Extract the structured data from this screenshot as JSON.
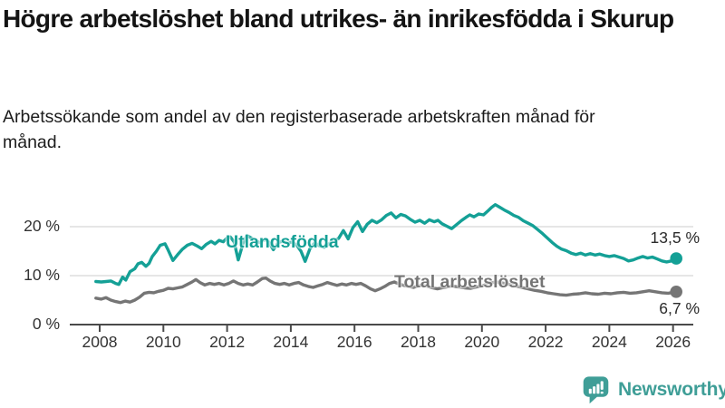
{
  "chart_data": {
    "type": "line",
    "title": "Högre arbetslöshet bland utrikes- än inrikesfödda i Skurup",
    "subtitle": "Arbetssökande som andel av den registerbaserade arbetskraften månad för månad.",
    "x_unit": "year",
    "xlim": [
      2007.05,
      2026.65
    ],
    "ylim": [
      0,
      25
    ],
    "grid": "horizontal-only",
    "legend_position": "inline-labels",
    "x_ticks": [
      2008,
      2010,
      2012,
      2014,
      2016,
      2018,
      2020,
      2022,
      2024,
      2026
    ],
    "x_tick_labels": [
      "2008",
      "2010",
      "2012",
      "2014",
      "2016",
      "2018",
      "2020",
      "2022",
      "2024",
      "2026"
    ],
    "y_ticks": [
      0,
      10,
      20
    ],
    "y_tick_labels": [
      "0 %",
      "10 %",
      "20 %"
    ],
    "series": [
      {
        "name": "Utlandsfödda",
        "color": "#14a096",
        "end_label": "13,5 %",
        "last_value": 13.5,
        "points": [
          [
            2007.88,
            8.8
          ],
          [
            2008.05,
            8.7
          ],
          [
            2008.2,
            8.8
          ],
          [
            2008.35,
            8.9
          ],
          [
            2008.5,
            8.4
          ],
          [
            2008.6,
            8.2
          ],
          [
            2008.72,
            9.7
          ],
          [
            2008.82,
            9.1
          ],
          [
            2008.95,
            10.8
          ],
          [
            2009.1,
            11.4
          ],
          [
            2009.2,
            12.4
          ],
          [
            2009.32,
            12.7
          ],
          [
            2009.45,
            11.9
          ],
          [
            2009.55,
            12.5
          ],
          [
            2009.65,
            13.9
          ],
          [
            2009.78,
            15.0
          ],
          [
            2009.9,
            16.2
          ],
          [
            2010.05,
            16.5
          ],
          [
            2010.15,
            15.2
          ],
          [
            2010.3,
            13.1
          ],
          [
            2010.45,
            14.3
          ],
          [
            2010.6,
            15.4
          ],
          [
            2010.75,
            16.2
          ],
          [
            2010.9,
            16.6
          ],
          [
            2011.05,
            16.1
          ],
          [
            2011.2,
            15.5
          ],
          [
            2011.35,
            16.4
          ],
          [
            2011.5,
            17.0
          ],
          [
            2011.62,
            16.5
          ],
          [
            2011.75,
            17.2
          ],
          [
            2011.88,
            16.9
          ],
          [
            2011.98,
            17.6
          ],
          [
            2012.1,
            17.9
          ],
          [
            2012.22,
            16.9
          ],
          [
            2012.35,
            13.2
          ],
          [
            2012.5,
            16.6
          ],
          [
            2012.62,
            18.2
          ],
          [
            2012.75,
            17.7
          ],
          [
            2012.9,
            17.1
          ],
          [
            2013.05,
            16.7
          ],
          [
            2013.18,
            17.4
          ],
          [
            2013.3,
            16.9
          ],
          [
            2013.45,
            15.3
          ],
          [
            2013.6,
            16.7
          ],
          [
            2013.75,
            17.1
          ],
          [
            2013.9,
            16.6
          ],
          [
            2014.05,
            16.9
          ],
          [
            2014.2,
            16.1
          ],
          [
            2014.32,
            15.0
          ],
          [
            2014.45,
            12.9
          ],
          [
            2014.6,
            15.5
          ],
          [
            2014.75,
            16.7
          ],
          [
            2014.9,
            16.1
          ],
          [
            2015.05,
            15.8
          ],
          [
            2015.2,
            16.5
          ],
          [
            2015.35,
            17.1
          ],
          [
            2015.5,
            17.6
          ],
          [
            2015.65,
            19.2
          ],
          [
            2015.8,
            17.5
          ],
          [
            2015.95,
            19.8
          ],
          [
            2016.1,
            21.0
          ],
          [
            2016.25,
            19.0
          ],
          [
            2016.4,
            20.5
          ],
          [
            2016.55,
            21.3
          ],
          [
            2016.7,
            20.8
          ],
          [
            2016.85,
            21.4
          ],
          [
            2017.0,
            22.3
          ],
          [
            2017.15,
            22.8
          ],
          [
            2017.3,
            21.8
          ],
          [
            2017.45,
            22.5
          ],
          [
            2017.6,
            22.2
          ],
          [
            2017.75,
            21.5
          ],
          [
            2017.9,
            20.9
          ],
          [
            2018.05,
            21.3
          ],
          [
            2018.2,
            20.7
          ],
          [
            2018.35,
            21.4
          ],
          [
            2018.5,
            21.0
          ],
          [
            2018.62,
            21.3
          ],
          [
            2018.75,
            20.6
          ],
          [
            2018.9,
            20.1
          ],
          [
            2019.05,
            19.6
          ],
          [
            2019.2,
            20.4
          ],
          [
            2019.35,
            21.2
          ],
          [
            2019.5,
            21.9
          ],
          [
            2019.62,
            22.4
          ],
          [
            2019.75,
            22.0
          ],
          [
            2019.9,
            22.6
          ],
          [
            2020.05,
            22.4
          ],
          [
            2020.2,
            23.3
          ],
          [
            2020.3,
            23.9
          ],
          [
            2020.42,
            24.5
          ],
          [
            2020.55,
            24.0
          ],
          [
            2020.7,
            23.4
          ],
          [
            2020.85,
            22.9
          ],
          [
            2021.0,
            22.3
          ],
          [
            2021.15,
            21.9
          ],
          [
            2021.3,
            21.2
          ],
          [
            2021.45,
            20.7
          ],
          [
            2021.6,
            20.2
          ],
          [
            2021.75,
            19.4
          ],
          [
            2021.9,
            18.6
          ],
          [
            2022.05,
            17.7
          ],
          [
            2022.2,
            16.8
          ],
          [
            2022.35,
            16.0
          ],
          [
            2022.5,
            15.4
          ],
          [
            2022.65,
            15.1
          ],
          [
            2022.8,
            14.6
          ],
          [
            2022.95,
            14.3
          ],
          [
            2023.1,
            14.6
          ],
          [
            2023.25,
            14.2
          ],
          [
            2023.4,
            14.5
          ],
          [
            2023.55,
            14.2
          ],
          [
            2023.7,
            14.4
          ],
          [
            2023.85,
            14.1
          ],
          [
            2024.0,
            13.9
          ],
          [
            2024.15,
            14.1
          ],
          [
            2024.3,
            13.8
          ],
          [
            2024.45,
            13.5
          ],
          [
            2024.6,
            13.0
          ],
          [
            2024.75,
            13.2
          ],
          [
            2024.9,
            13.6
          ],
          [
            2025.05,
            13.9
          ],
          [
            2025.2,
            13.6
          ],
          [
            2025.35,
            13.8
          ],
          [
            2025.5,
            13.4
          ],
          [
            2025.65,
            13.0
          ],
          [
            2025.8,
            12.8
          ],
          [
            2025.95,
            13.0
          ],
          [
            2026.1,
            13.5
          ]
        ]
      },
      {
        "name": "Total arbetslöshet",
        "color": "#757575",
        "end_label": "6,7 %",
        "last_value": 6.7,
        "points": [
          [
            2007.88,
            5.4
          ],
          [
            2008.05,
            5.2
          ],
          [
            2008.2,
            5.5
          ],
          [
            2008.35,
            5.0
          ],
          [
            2008.5,
            4.7
          ],
          [
            2008.65,
            4.5
          ],
          [
            2008.8,
            4.8
          ],
          [
            2008.95,
            4.6
          ],
          [
            2009.1,
            5.0
          ],
          [
            2009.25,
            5.6
          ],
          [
            2009.4,
            6.4
          ],
          [
            2009.55,
            6.6
          ],
          [
            2009.7,
            6.5
          ],
          [
            2009.85,
            6.8
          ],
          [
            2010.0,
            7.0
          ],
          [
            2010.15,
            7.4
          ],
          [
            2010.3,
            7.3
          ],
          [
            2010.45,
            7.5
          ],
          [
            2010.6,
            7.7
          ],
          [
            2010.75,
            8.2
          ],
          [
            2010.9,
            8.7
          ],
          [
            2011.02,
            9.2
          ],
          [
            2011.15,
            8.6
          ],
          [
            2011.3,
            8.1
          ],
          [
            2011.45,
            8.4
          ],
          [
            2011.6,
            8.2
          ],
          [
            2011.75,
            8.4
          ],
          [
            2011.9,
            8.1
          ],
          [
            2012.05,
            8.4
          ],
          [
            2012.2,
            8.9
          ],
          [
            2012.35,
            8.4
          ],
          [
            2012.5,
            8.1
          ],
          [
            2012.65,
            8.3
          ],
          [
            2012.8,
            8.1
          ],
          [
            2012.95,
            8.7
          ],
          [
            2013.1,
            9.4
          ],
          [
            2013.22,
            9.5
          ],
          [
            2013.35,
            8.9
          ],
          [
            2013.5,
            8.4
          ],
          [
            2013.65,
            8.2
          ],
          [
            2013.8,
            8.4
          ],
          [
            2013.95,
            8.1
          ],
          [
            2014.1,
            8.4
          ],
          [
            2014.25,
            8.6
          ],
          [
            2014.4,
            8.1
          ],
          [
            2014.55,
            7.8
          ],
          [
            2014.7,
            7.6
          ],
          [
            2014.85,
            7.9
          ],
          [
            2015.0,
            8.2
          ],
          [
            2015.15,
            8.6
          ],
          [
            2015.3,
            8.3
          ],
          [
            2015.45,
            8.0
          ],
          [
            2015.6,
            8.3
          ],
          [
            2015.75,
            8.1
          ],
          [
            2015.9,
            8.4
          ],
          [
            2016.05,
            8.2
          ],
          [
            2016.2,
            8.4
          ],
          [
            2016.35,
            7.9
          ],
          [
            2016.5,
            7.3
          ],
          [
            2016.65,
            6.9
          ],
          [
            2016.8,
            7.3
          ],
          [
            2016.95,
            7.8
          ],
          [
            2017.1,
            8.4
          ],
          [
            2017.25,
            8.7
          ],
          [
            2017.4,
            8.3
          ],
          [
            2017.55,
            8.0
          ],
          [
            2017.7,
            7.8
          ],
          [
            2017.85,
            7.6
          ],
          [
            2018.0,
            7.9
          ],
          [
            2018.15,
            8.1
          ],
          [
            2018.3,
            7.8
          ],
          [
            2018.45,
            7.5
          ],
          [
            2018.6,
            7.3
          ],
          [
            2018.75,
            7.5
          ],
          [
            2018.9,
            7.7
          ],
          [
            2019.05,
            7.9
          ],
          [
            2019.25,
            7.7
          ],
          [
            2019.45,
            7.5
          ],
          [
            2019.65,
            7.4
          ],
          [
            2019.85,
            7.7
          ],
          [
            2020.05,
            8.0
          ],
          [
            2020.25,
            8.5
          ],
          [
            2020.45,
            8.7
          ],
          [
            2020.65,
            8.5
          ],
          [
            2020.85,
            8.2
          ],
          [
            2021.05,
            7.9
          ],
          [
            2021.25,
            7.6
          ],
          [
            2021.45,
            7.3
          ],
          [
            2021.65,
            7.0
          ],
          [
            2021.85,
            6.8
          ],
          [
            2022.05,
            6.5
          ],
          [
            2022.25,
            6.3
          ],
          [
            2022.45,
            6.1
          ],
          [
            2022.65,
            6.0
          ],
          [
            2022.85,
            6.2
          ],
          [
            2023.05,
            6.3
          ],
          [
            2023.25,
            6.5
          ],
          [
            2023.45,
            6.3
          ],
          [
            2023.65,
            6.2
          ],
          [
            2023.85,
            6.4
          ],
          [
            2024.05,
            6.3
          ],
          [
            2024.25,
            6.5
          ],
          [
            2024.45,
            6.6
          ],
          [
            2024.65,
            6.4
          ],
          [
            2024.85,
            6.5
          ],
          [
            2025.05,
            6.7
          ],
          [
            2025.25,
            6.9
          ],
          [
            2025.45,
            6.7
          ],
          [
            2025.65,
            6.5
          ],
          [
            2025.85,
            6.4
          ],
          [
            2026.0,
            6.6
          ],
          [
            2026.1,
            6.7
          ]
        ]
      }
    ]
  },
  "colors": {
    "accent_teal": "#14a096",
    "series_gray": "#757575",
    "grid": "#d8d8d8",
    "axis": "#4a4a4a",
    "logo_teal": "#3f9e97"
  },
  "footer": {
    "brand": "Newsworthy",
    "logo_icon": "bar-chart-speech-bubble-icon"
  }
}
